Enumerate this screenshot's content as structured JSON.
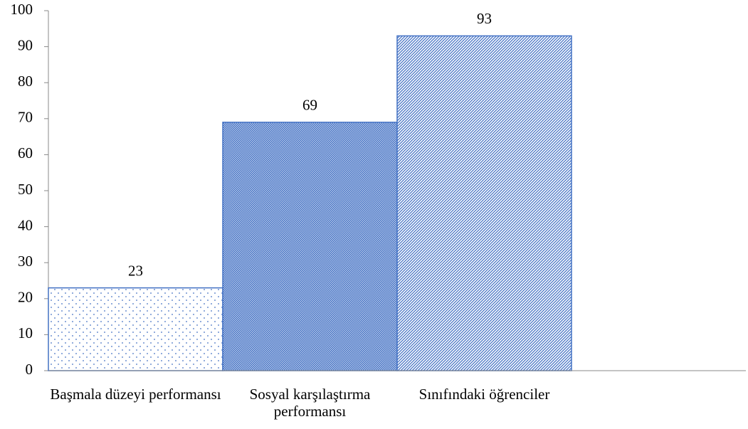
{
  "chart_data": {
    "type": "bar",
    "categories": [
      "Başmala düzeyi performansı",
      "Sosyal karşılaştırma performansı",
      "Sınıfındaki öğrenciler",
      null
    ],
    "values": [
      23,
      69,
      93,
      null
    ],
    "color": "#4472c4",
    "patterns": [
      "dots",
      "crosshatch",
      "diagonal"
    ],
    "ylim": [
      0,
      100
    ],
    "yticks": [
      0,
      10,
      20,
      30,
      40,
      50,
      60,
      70,
      80,
      90,
      100
    ]
  }
}
